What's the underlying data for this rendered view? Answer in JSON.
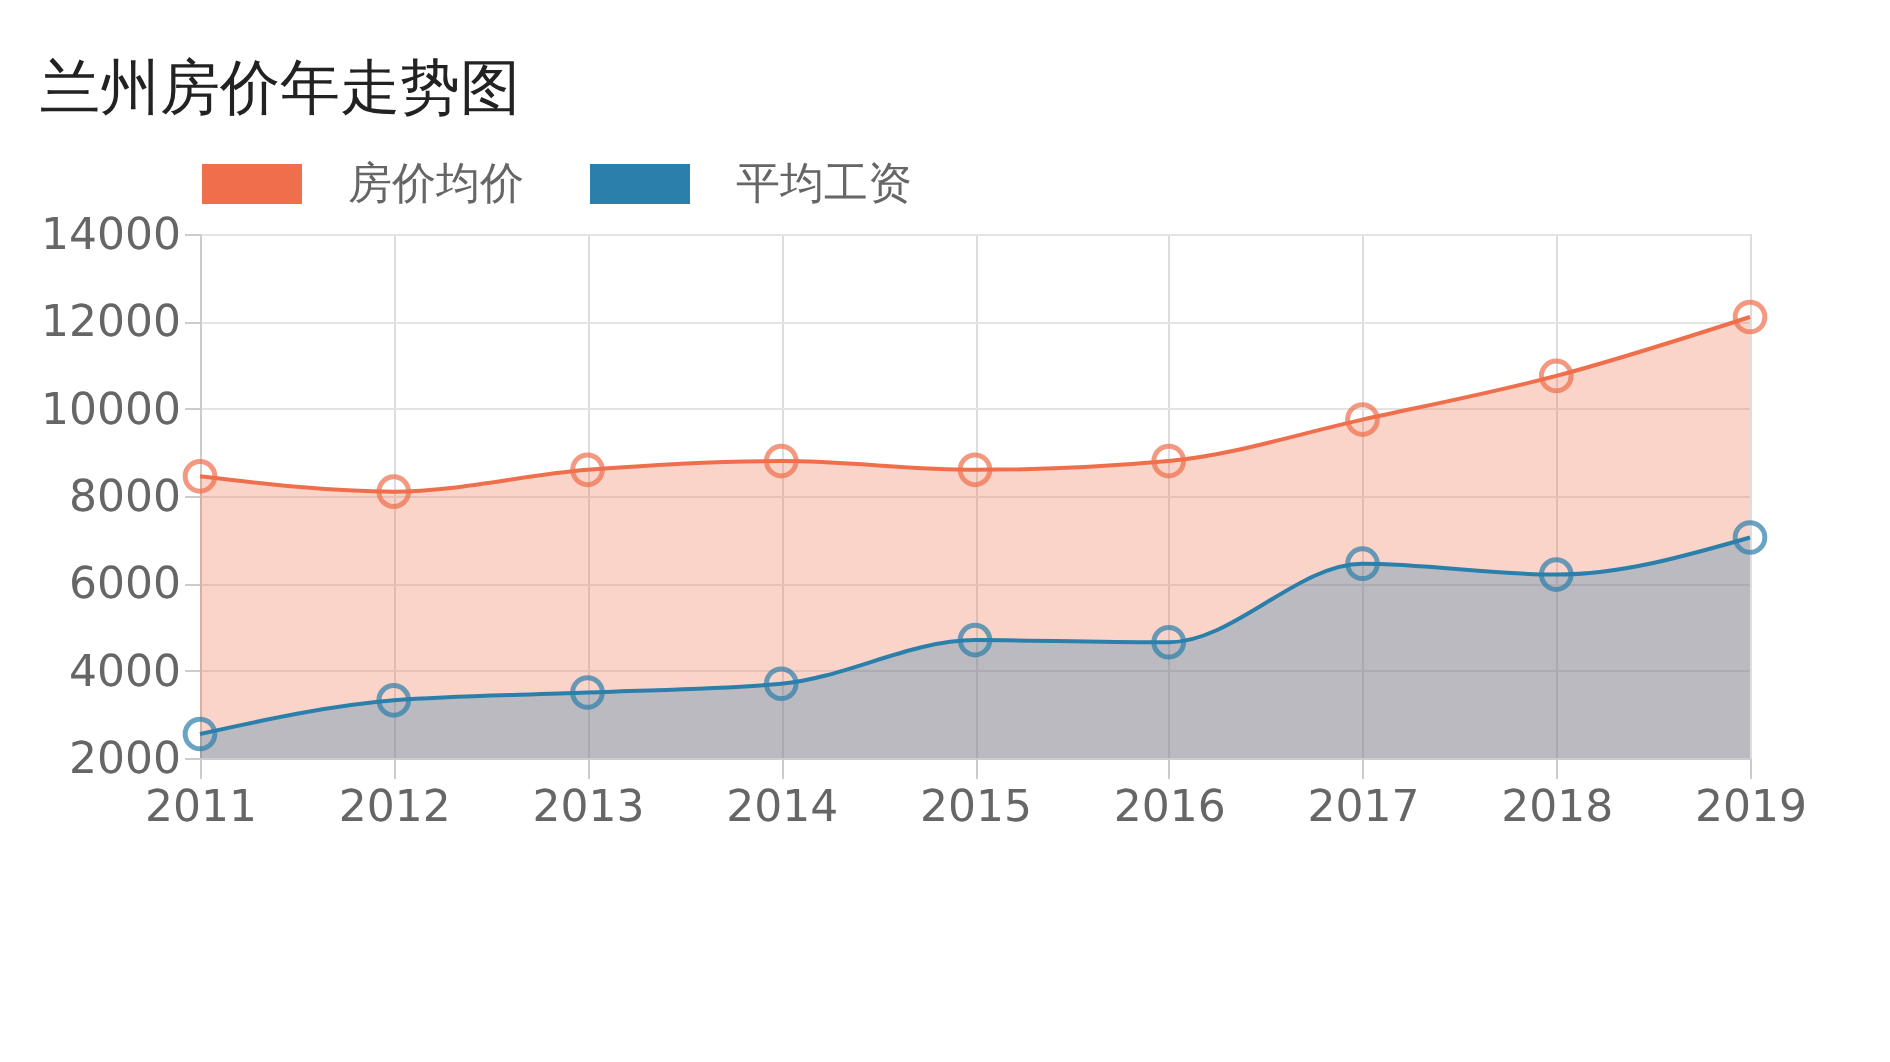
{
  "chart_data": {
    "type": "area",
    "title": "兰州房价年走势图",
    "categories": [
      "2011",
      "2012",
      "2013",
      "2014",
      "2015",
      "2016",
      "2017",
      "2018",
      "2019"
    ],
    "series": [
      {
        "name": "房价均价",
        "color": "#ef6f4c",
        "values": [
          8450,
          8100,
          8600,
          8800,
          8600,
          8800,
          9750,
          10750,
          12100
        ]
      },
      {
        "name": "平均工资",
        "color": "#2b7fab",
        "values": [
          2550,
          3320,
          3500,
          3700,
          4700,
          4650,
          6450,
          6200,
          7050
        ]
      }
    ],
    "ylim": [
      2000,
      14000
    ],
    "yticks": [
      2000,
      4000,
      6000,
      8000,
      10000,
      12000,
      14000
    ],
    "grid": true,
    "legend": "top",
    "marker": "circle",
    "line_style": "solid"
  }
}
